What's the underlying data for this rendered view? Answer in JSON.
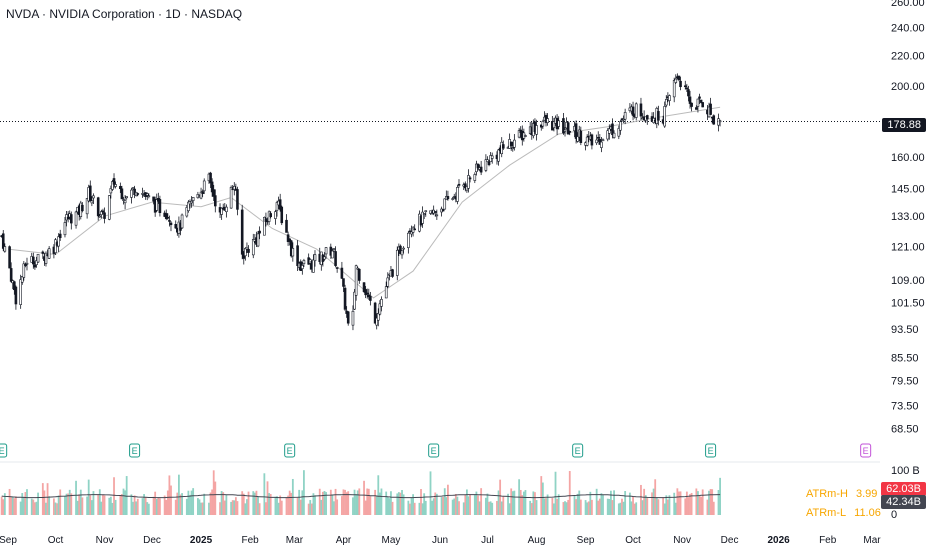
{
  "header": {
    "title": "NVDA · NVIDIA Corporation · 1D · NASDAQ"
  },
  "last_price": "178.88",
  "volume_panel": {
    "scale_labels": [
      "100 B",
      "0"
    ],
    "tag_high": "62.03B",
    "tag_low": "42.34B"
  },
  "atr": {
    "high_label": "ATRm-H",
    "high_value": "3.99",
    "low_label": "ATRm-L",
    "low_value": "11.06",
    "color": "#f7a600"
  },
  "earnings_marker_label": "E",
  "colors": {
    "up": "#26a69a",
    "down": "#ef5350",
    "ma": "#b8b8b8",
    "earnings": "#1e9c8a",
    "earnings_future": "#c252d8"
  },
  "chart_data": {
    "type": "candlestick",
    "title": "NVDA · NVIDIA Corporation · 1D · NASDAQ",
    "y_scale": "log",
    "ylim": [
      63,
      260
    ],
    "y_ticks": [
      "260.00",
      "240.00",
      "220.00",
      "200.00",
      "178.88",
      "160.00",
      "145.00",
      "133.00",
      "121.00",
      "109.00",
      "101.50",
      "93.50",
      "85.50",
      "79.50",
      "73.50",
      "68.50"
    ],
    "x_ticks": [
      {
        "label": "Sep",
        "date": "2024-09-01"
      },
      {
        "label": "Oct",
        "date": "2024-10-01"
      },
      {
        "label": "Nov",
        "date": "2024-11-01"
      },
      {
        "label": "Dec",
        "date": "2024-12-01"
      },
      {
        "label": "2025",
        "date": "2025-01-01",
        "bold": true
      },
      {
        "label": "Feb",
        "date": "2025-02-01"
      },
      {
        "label": "Mar",
        "date": "2025-03-01"
      },
      {
        "label": "Apr",
        "date": "2025-04-01"
      },
      {
        "label": "May",
        "date": "2025-05-01"
      },
      {
        "label": "Jun",
        "date": "2025-06-01"
      },
      {
        "label": "Jul",
        "date": "2025-07-01"
      },
      {
        "label": "Aug",
        "date": "2025-08-01"
      },
      {
        "label": "Sep",
        "date": "2025-09-01"
      },
      {
        "label": "Oct",
        "date": "2025-10-01"
      },
      {
        "label": "Nov",
        "date": "2025-11-01"
      },
      {
        "label": "Dec",
        "date": "2025-12-01"
      },
      {
        "label": "2026",
        "date": "2026-01-01",
        "bold": true
      },
      {
        "label": "Feb",
        "date": "2026-02-01"
      },
      {
        "label": "Mar",
        "date": "2026-03-01"
      }
    ],
    "price_path": [
      [
        "2024-08-28",
        125
      ],
      [
        "2024-09-06",
        103
      ],
      [
        "2024-09-13",
        116
      ],
      [
        "2024-09-20",
        116
      ],
      [
        "2024-09-30",
        121
      ],
      [
        "2024-10-08",
        132
      ],
      [
        "2024-10-15",
        134
      ],
      [
        "2024-10-22",
        143
      ],
      [
        "2024-10-31",
        132
      ],
      [
        "2024-11-07",
        148
      ],
      [
        "2024-11-15",
        141
      ],
      [
        "2024-11-21",
        146
      ],
      [
        "2024-12-02",
        138
      ],
      [
        "2024-12-10",
        135
      ],
      [
        "2024-12-18",
        128
      ],
      [
        "2024-12-26",
        139
      ],
      [
        "2025-01-06",
        149
      ],
      [
        "2025-01-13",
        133
      ],
      [
        "2025-01-22",
        147
      ],
      [
        "2025-01-27",
        118
      ],
      [
        "2025-02-05",
        124
      ],
      [
        "2025-02-18",
        139
      ],
      [
        "2025-02-27",
        120
      ],
      [
        "2025-03-05",
        114
      ],
      [
        "2025-03-13",
        115
      ],
      [
        "2025-03-25",
        120
      ],
      [
        "2025-03-31",
        108
      ],
      [
        "2025-04-04",
        94
      ],
      [
        "2025-04-07",
        97
      ],
      [
        "2025-04-09",
        114
      ],
      [
        "2025-04-21",
        97
      ],
      [
        "2025-05-01",
        111
      ],
      [
        "2025-05-13",
        129
      ],
      [
        "2025-05-30",
        135
      ],
      [
        "2025-06-10",
        142
      ],
      [
        "2025-06-25",
        154
      ],
      [
        "2025-07-10",
        164
      ],
      [
        "2025-07-25",
        173
      ],
      [
        "2025-08-05",
        179
      ],
      [
        "2025-08-20",
        175
      ],
      [
        "2025-09-01",
        170
      ],
      [
        "2025-09-05",
        167
      ],
      [
        "2025-09-20",
        176
      ],
      [
        "2025-10-01",
        186
      ],
      [
        "2025-10-10",
        183
      ],
      [
        "2025-10-20",
        182
      ],
      [
        "2025-10-29",
        207
      ],
      [
        "2025-11-07",
        188
      ],
      [
        "2025-11-14",
        190
      ],
      [
        "2025-11-20",
        182
      ],
      [
        "2025-11-25",
        178.88
      ]
    ],
    "ma_path": [
      [
        "2024-09-01",
        120
      ],
      [
        "2024-10-01",
        118
      ],
      [
        "2024-11-01",
        133
      ],
      [
        "2024-12-01",
        139
      ],
      [
        "2025-01-01",
        137
      ],
      [
        "2025-01-20",
        141
      ],
      [
        "2025-02-15",
        128
      ],
      [
        "2025-03-15",
        120
      ],
      [
        "2025-04-20",
        103
      ],
      [
        "2025-05-15",
        112
      ],
      [
        "2025-06-15",
        139
      ],
      [
        "2025-07-15",
        156
      ],
      [
        "2025-08-15",
        172
      ],
      [
        "2025-09-15",
        176
      ],
      [
        "2025-10-15",
        181
      ],
      [
        "2025-11-25",
        187
      ]
    ],
    "earnings_dates": [
      "2024-08-28",
      "2024-11-20",
      "2025-02-26",
      "2025-05-28",
      "2025-08-27",
      "2025-11-19",
      "2026-02-25"
    ]
  }
}
